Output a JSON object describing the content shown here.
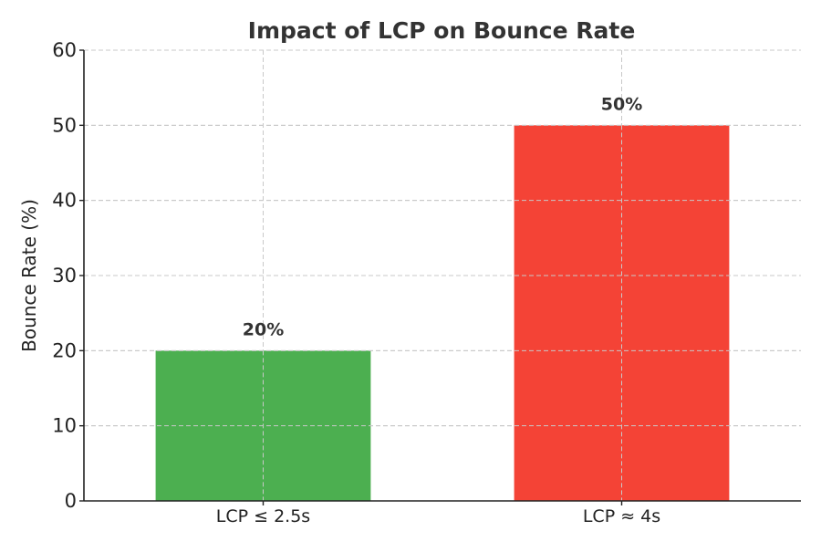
{
  "chart_data": {
    "type": "bar",
    "title": "Impact of LCP on Bounce Rate",
    "xlabel": "",
    "ylabel": "Bounce Rate (%)",
    "categories": [
      "LCP ≤ 2.5s",
      "LCP ≈ 4s"
    ],
    "values": [
      20,
      50
    ],
    "value_labels": [
      "20%",
      "50%"
    ],
    "colors": [
      "#4caf50",
      "#f44336"
    ],
    "ylim": [
      0,
      60
    ],
    "yticks": [
      0,
      10,
      20,
      30,
      40,
      50,
      60
    ],
    "grid": true,
    "legend": "none"
  }
}
